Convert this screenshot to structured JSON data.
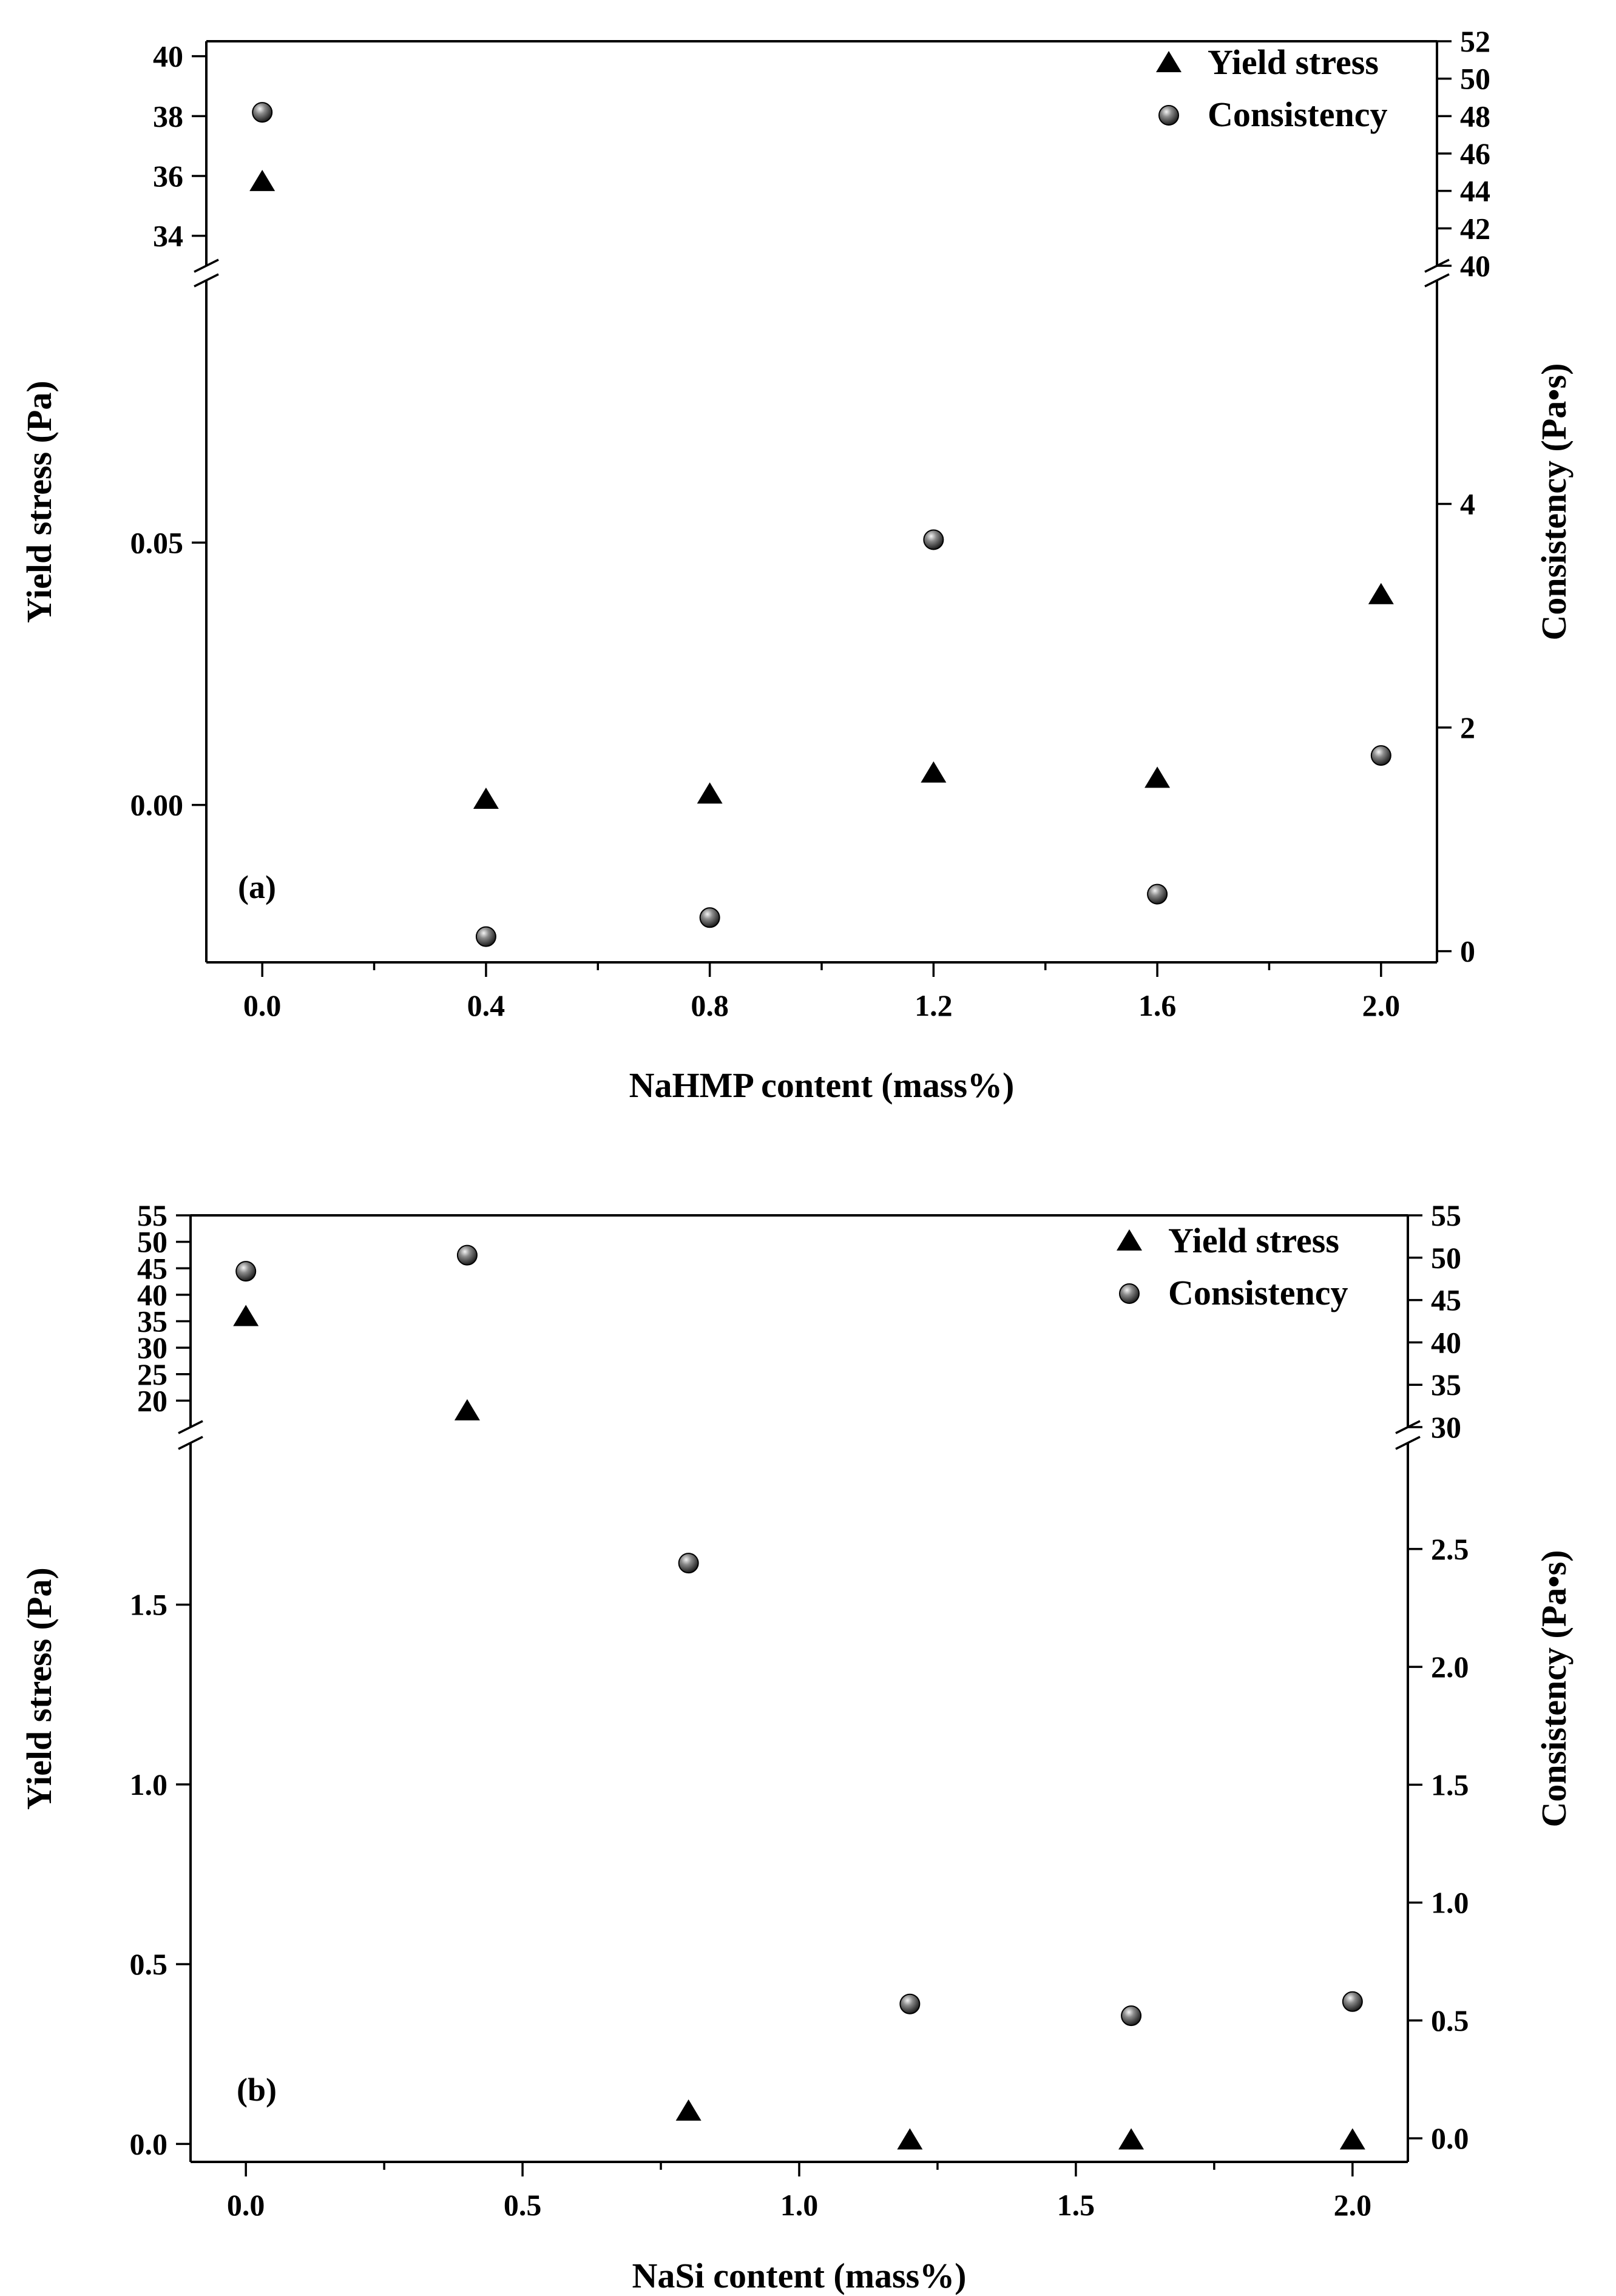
{
  "chart_data": [
    {
      "panel": "(a)",
      "type": "scatter",
      "xlabel": "NaHMP content (mass%)",
      "xlim": [
        -0.1,
        2.1
      ],
      "xticks": [
        0.0,
        0.4,
        0.8,
        1.2,
        1.6,
        2.0
      ],
      "xtick_labels": [
        "0.0",
        "0.4",
        "0.8",
        "1.2",
        "1.6",
        "2.0"
      ],
      "left_axis": {
        "label": "Yield stress (Pa)",
        "break": true,
        "lower": {
          "range": [
            -0.03,
            0.1
          ],
          "ticks": [
            0.0,
            0.05
          ],
          "tick_labels": [
            "0.00",
            "0.05"
          ]
        },
        "upper": {
          "range": [
            33,
            40.5
          ],
          "ticks": [
            34,
            36,
            38,
            40
          ],
          "tick_labels": [
            "34",
            "36",
            "38",
            "40"
          ]
        }
      },
      "right_axis": {
        "label": "Consistency (Pa•s)",
        "break": true,
        "lower": {
          "range": [
            -0.1,
            6
          ],
          "ticks": [
            0,
            2,
            4
          ],
          "tick_labels": [
            "0",
            "2",
            "4"
          ]
        },
        "upper": {
          "range": [
            40,
            52
          ],
          "ticks": [
            40,
            42,
            44,
            46,
            48,
            50,
            52
          ],
          "tick_labels": [
            "40",
            "42",
            "44",
            "46",
            "48",
            "50",
            "52"
          ]
        }
      },
      "series": [
        {
          "name": "Yield stress",
          "marker": "triangle",
          "axis": "left",
          "x": [
            0.0,
            0.4,
            0.8,
            1.2,
            1.6,
            2.0
          ],
          "y": [
            35.8,
            0.001,
            0.002,
            0.006,
            0.005,
            0.04
          ]
        },
        {
          "name": "Consistency",
          "marker": "sphere",
          "axis": "right",
          "x": [
            0.0,
            0.4,
            0.8,
            1.2,
            1.6,
            2.0
          ],
          "y": [
            48.2,
            0.13,
            0.3,
            3.68,
            0.51,
            1.75
          ]
        }
      ],
      "legend_position": "top-right"
    },
    {
      "panel": "(b)",
      "type": "scatter",
      "xlabel": "NaSi content (mass%)",
      "xlim": [
        -0.1,
        2.1
      ],
      "xticks": [
        0.0,
        0.5,
        1.0,
        1.5,
        2.0
      ],
      "xtick_labels": [
        "0.0",
        "0.5",
        "1.0",
        "1.5",
        "2.0"
      ],
      "left_axis": {
        "label": "Yield stress (Pa)",
        "break": true,
        "lower": {
          "range": [
            -0.05,
            1.95
          ],
          "ticks": [
            0.0,
            0.5,
            1.0,
            1.5
          ],
          "tick_labels": [
            "0.0",
            "0.5",
            "1.0",
            "1.5"
          ]
        },
        "upper": {
          "range": [
            15,
            55
          ],
          "ticks": [
            20,
            25,
            30,
            35,
            40,
            45,
            50,
            55
          ],
          "tick_labels": [
            "20",
            "25",
            "30",
            "35",
            "40",
            "45",
            "50",
            "55"
          ]
        }
      },
      "right_axis": {
        "label": "Consistency (Pa•s)",
        "break": true,
        "lower": {
          "range": [
            -0.1,
            2.95
          ],
          "ticks": [
            0.0,
            0.5,
            1.0,
            1.5,
            2.0,
            2.5
          ],
          "tick_labels": [
            "0.0",
            "0.5",
            "1.0",
            "1.5",
            "2.0",
            "2.5"
          ]
        },
        "upper": {
          "range": [
            30,
            55
          ],
          "ticks": [
            30,
            35,
            40,
            45,
            50,
            55
          ],
          "tick_labels": [
            "30",
            "35",
            "40",
            "45",
            "50",
            "55"
          ]
        }
      },
      "series": [
        {
          "name": "Yield stress",
          "marker": "triangle",
          "axis": "left",
          "x": [
            0.0,
            0.4,
            0.8,
            1.2,
            1.6,
            2.0
          ],
          "y": [
            35.8,
            18.0,
            0.09,
            0.01,
            0.01,
            0.01
          ]
        },
        {
          "name": "Consistency",
          "marker": "sphere",
          "axis": "right",
          "x": [
            0.0,
            0.4,
            0.8,
            1.2,
            1.6,
            2.0
          ],
          "y": [
            48.4,
            50.3,
            2.44,
            0.57,
            0.52,
            0.58
          ]
        }
      ],
      "legend_position": "top-right"
    }
  ]
}
